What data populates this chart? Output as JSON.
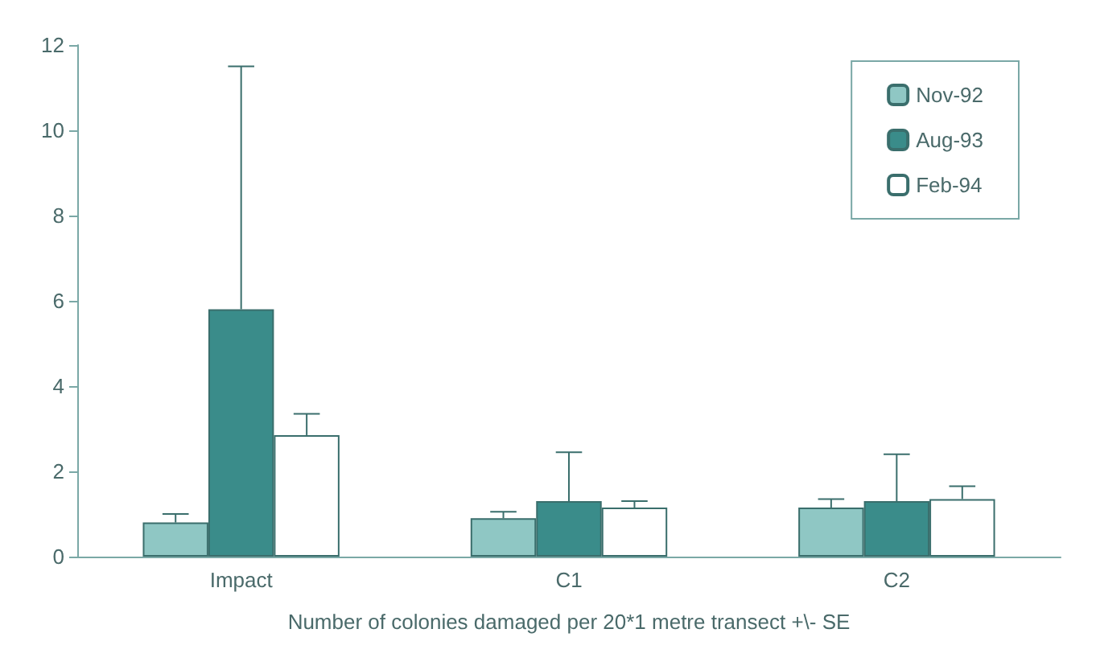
{
  "chart_data": {
    "type": "bar",
    "xlabel": "Number of colonies damaged per 20*1 metre transect +\\- SE",
    "categories": [
      "Impact",
      "C1",
      "C2"
    ],
    "series": [
      {
        "name": "Nov-92",
        "color": "#8fc7c4",
        "values": [
          0.8,
          0.9,
          1.15
        ],
        "errors": [
          [
            0.8,
            1.0
          ],
          [
            0.9,
            1.05
          ],
          [
            1.15,
            1.35
          ]
        ]
      },
      {
        "name": "Aug-93",
        "color": "#3a8c8a",
        "values": [
          5.8,
          1.3,
          1.3
        ],
        "errors": [
          [
            5.8,
            11.5
          ],
          [
            1.3,
            2.45
          ],
          [
            1.3,
            2.4
          ]
        ]
      },
      {
        "name": "Feb-94",
        "color": "#ffffff",
        "values": [
          2.85,
          1.15,
          1.35
        ],
        "errors": [
          [
            2.85,
            3.35
          ],
          [
            1.15,
            1.3
          ],
          [
            1.35,
            1.65
          ]
        ]
      }
    ],
    "ylim": [
      0,
      12
    ],
    "yticks": [
      0,
      2,
      4,
      6,
      8,
      10,
      12
    ],
    "grid": false,
    "legend": "top right"
  }
}
